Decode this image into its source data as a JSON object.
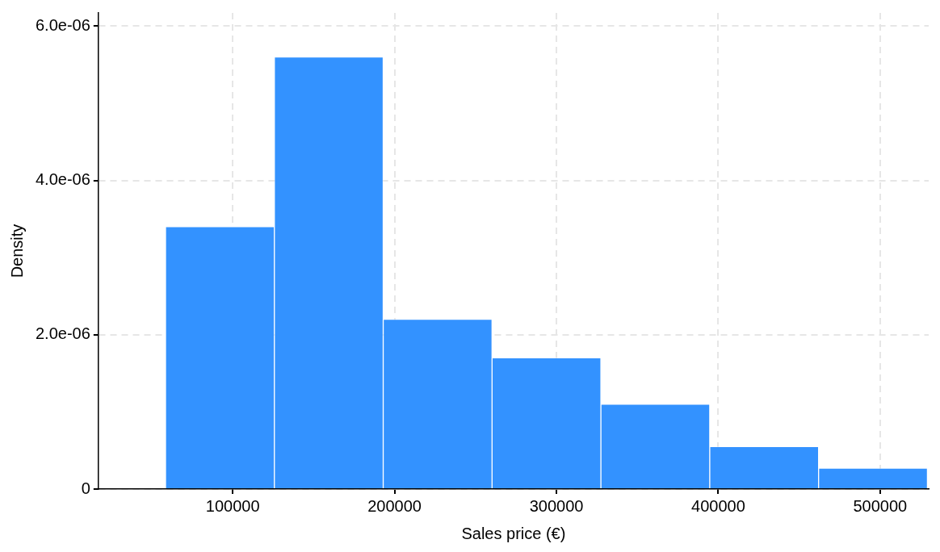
{
  "chart_data": {
    "type": "histogram",
    "xlabel": "Sales price (€)",
    "ylabel": "Density",
    "bins": [
      58500,
      125700,
      193000,
      260200,
      327500,
      394700,
      462000,
      529200
    ],
    "values": [
      3.4e-06,
      5.6e-06,
      2.2e-06,
      1.7e-06,
      1.1e-06,
      5.5e-07,
      2.7e-07
    ],
    "color": "#3392ff",
    "xlim": [
      17000,
      530000
    ],
    "xticks": [
      100000,
      200000,
      300000,
      400000,
      500000
    ],
    "ylim": [
      0,
      6.17e-06
    ],
    "yticks": [
      {
        "value": 0,
        "label": "0"
      },
      {
        "value": 2e-06,
        "label": "2.0e-06"
      },
      {
        "value": 4e-06,
        "label": "4.0e-06"
      },
      {
        "value": 6e-06,
        "label": "6.0e-06"
      }
    ],
    "grid": true
  }
}
